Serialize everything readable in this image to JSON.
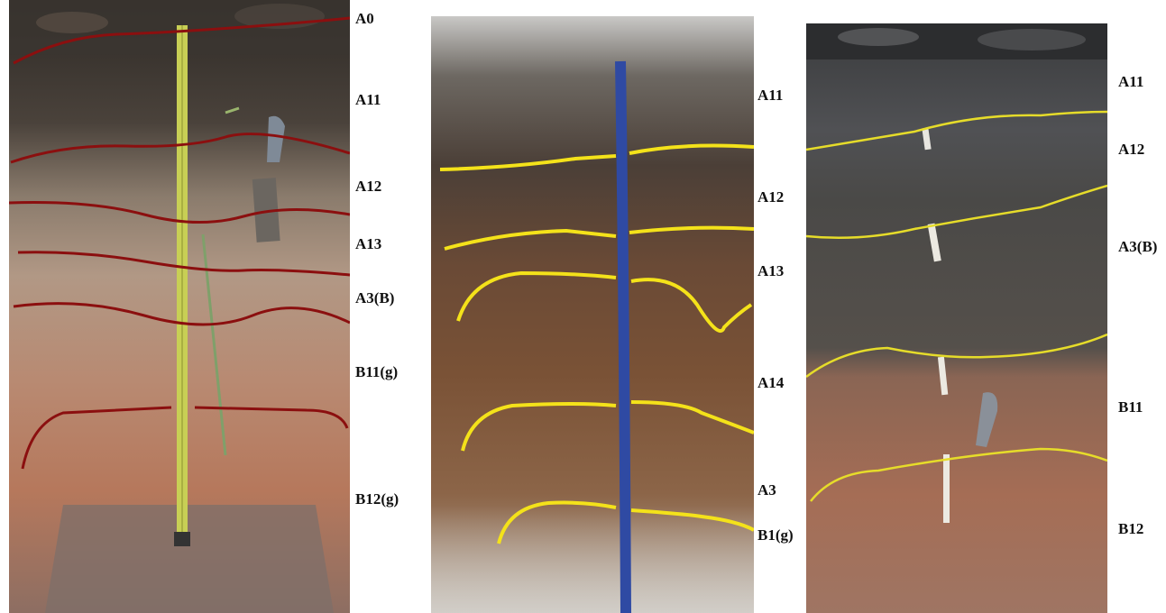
{
  "panels": [
    {
      "labels": [
        "A0",
        "A11",
        "A12",
        "A13",
        "A3(B)",
        "B11(g)",
        "B12(g)"
      ],
      "boundary_color": "#8b0f0f"
    },
    {
      "labels": [
        "A11",
        "A12",
        "A13",
        "A14",
        "A3",
        "B1(g)"
      ],
      "boundary_color": "#f4e21a"
    },
    {
      "labels": [
        "A11",
        "A12",
        "A3(B)",
        "B11",
        "B12"
      ],
      "boundary_color": "#e6dc2a"
    }
  ]
}
